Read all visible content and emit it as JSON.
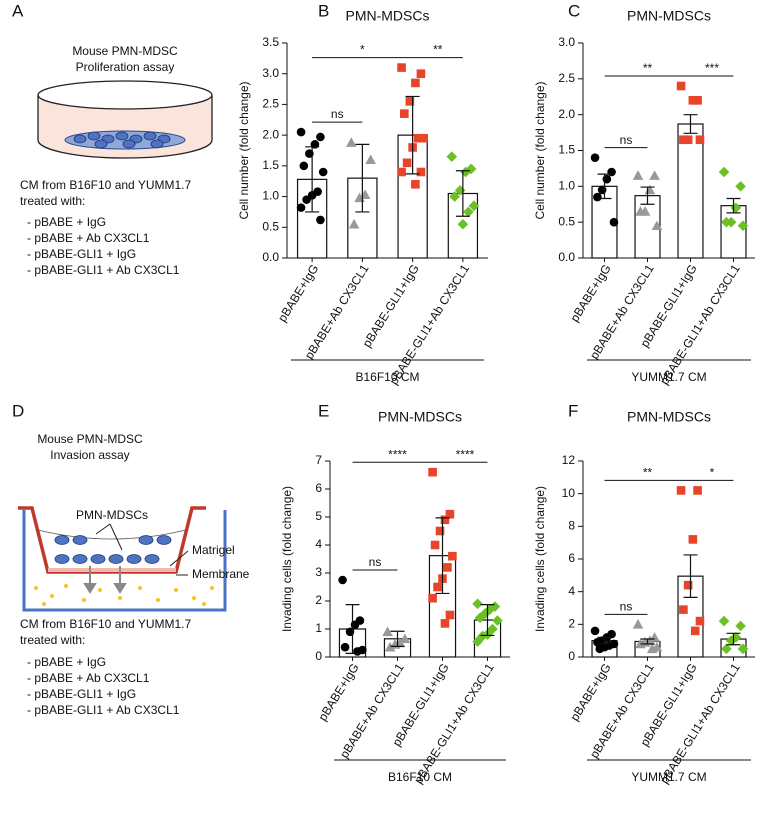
{
  "chart_data": [
    {
      "type": "bar",
      "panel_label": "B",
      "title": "PMN-MDSCs",
      "ylabel": "Cell number (fold change)",
      "xlabel": "B16F10 CM",
      "categories": [
        "pBABE+IgG",
        "pBABE+Ab CX3CL1",
        "pBABE-GLI1+IgG",
        "pBABE-GLI1+Ab CX3CL1"
      ],
      "values": [
        1.28,
        1.3,
        2.0,
        1.05
      ],
      "errors": [
        0.53,
        0.55,
        0.63,
        0.37
      ],
      "points": [
        [
          2.05,
          1.97,
          1.85,
          1.7,
          1.5,
          1.4,
          1.08,
          1.02,
          0.95,
          0.82,
          0.62
        ],
        [
          1.88,
          1.6,
          1.03,
          0.98,
          0.55
        ],
        [
          3.1,
          3.0,
          2.85,
          2.55,
          2.35,
          1.95,
          1.95,
          1.8,
          1.55,
          1.4,
          1.4,
          1.2
        ],
        [
          1.65,
          1.45,
          1.4,
          1.1,
          1.0,
          0.85,
          0.75,
          0.55
        ]
      ],
      "colors": [
        "#000000",
        "#999999",
        "#e8442a",
        "#6cc024"
      ],
      "markers": [
        "circle",
        "triangle",
        "square",
        "diamond"
      ],
      "ylim": [
        0,
        3.5
      ],
      "yticks": [
        {
          "value": 0,
          "label": "0.0"
        },
        0.5,
        {
          "value": 1,
          "label": "1.0"
        },
        1.5,
        {
          "value": 2,
          "label": "2.0"
        },
        2.5,
        {
          "value": 3,
          "label": "3.0"
        },
        3.5
      ],
      "significance": [
        {
          "groups": [
            "pBABE+IgG",
            "pBABE+Ab CX3CL1"
          ],
          "label": "ns"
        },
        {
          "groups": [
            "pBABE-GLI1+IgG",
            "pBABE-GLI1+Ab CX3CL1"
          ],
          "label": "**"
        },
        {
          "groups": [
            "pBABE+IgG",
            "pBABE-GLI1+IgG"
          ],
          "label": "*"
        }
      ]
    },
    {
      "type": "bar",
      "panel_label": "C",
      "title": "PMN-MDSCs",
      "ylabel": "Cell number (fold change)",
      "xlabel": "YUMM1.7 CM",
      "categories": [
        "pBABE+IgG",
        "pBABE+Ab CX3CL1",
        "pBABE-GLI1+IgG",
        "pBABE-GLI1+Ab CX3CL1"
      ],
      "values": [
        1.0,
        0.87,
        1.87,
        0.73
      ],
      "errors": [
        0.17,
        0.12,
        0.13,
        0.1
      ],
      "points": [
        [
          1.4,
          1.2,
          1.1,
          0.95,
          0.85,
          0.5
        ],
        [
          1.15,
          1.15,
          0.95,
          0.65,
          0.65,
          0.45
        ],
        [
          2.4,
          2.2,
          2.2,
          1.65,
          1.65,
          1.65
        ],
        [
          1.2,
          1.0,
          0.7,
          0.5,
          0.5,
          0.45
        ]
      ],
      "colors": [
        "#000000",
        "#999999",
        "#e8442a",
        "#6cc024"
      ],
      "markers": [
        "circle",
        "triangle",
        "square",
        "diamond"
      ],
      "ylim": [
        0,
        3
      ],
      "yticks": [
        {
          "value": 0,
          "label": "0.0"
        },
        0.5,
        {
          "value": 1,
          "label": "1.0"
        },
        1.5,
        {
          "value": 2,
          "label": "2.0"
        },
        2.5,
        {
          "value": 3,
          "label": "3.0"
        }
      ],
      "significance": [
        {
          "groups": [
            "pBABE+IgG",
            "pBABE+Ab CX3CL1"
          ],
          "label": "ns"
        },
        {
          "groups": [
            "pBABE-GLI1+IgG",
            "pBABE-GLI1+Ab CX3CL1"
          ],
          "label": "***"
        },
        {
          "groups": [
            "pBABE+IgG",
            "pBABE-GLI1+IgG"
          ],
          "label": "**"
        }
      ]
    },
    {
      "type": "bar",
      "panel_label": "E",
      "title": "PMN-MDSCs",
      "ylabel": "Invading cells (fold change)",
      "xlabel": "B16F10 CM",
      "categories": [
        "pBABE+IgG",
        "pBABE+Ab CX3CL1",
        "pBABE-GLI1+IgG",
        "pBABE-GLI1+Ab CX3CL1"
      ],
      "values": [
        1.0,
        0.65,
        3.62,
        1.32
      ],
      "errors": [
        0.87,
        0.27,
        1.35,
        0.55
      ],
      "points": [
        [
          2.75,
          1.3,
          1.15,
          0.9,
          0.35,
          0.25,
          0.2
        ],
        [
          0.9,
          0.65,
          0.5,
          0.45,
          0.35
        ],
        [
          6.6,
          5.1,
          4.9,
          4.5,
          4.0,
          3.6,
          3.2,
          2.8,
          2.5,
          2.1,
          1.5,
          1.2
        ],
        [
          1.9,
          1.8,
          1.7,
          1.55,
          1.4,
          1.3,
          1.0,
          0.8,
          0.75,
          0.55
        ]
      ],
      "colors": [
        "#000000",
        "#999999",
        "#e8442a",
        "#6cc024"
      ],
      "markers": [
        "circle",
        "triangle",
        "square",
        "diamond"
      ],
      "ylim": [
        0,
        7
      ],
      "yticks": [
        0,
        1,
        2,
        3,
        4,
        5,
        6,
        7
      ],
      "significance": [
        {
          "groups": [
            "pBABE+IgG",
            "pBABE+Ab CX3CL1"
          ],
          "label": "ns"
        },
        {
          "groups": [
            "pBABE-GLI1+IgG",
            "pBABE-GLI1+Ab CX3CL1"
          ],
          "label": "****"
        },
        {
          "groups": [
            "pBABE+IgG",
            "pBABE-GLI1+IgG"
          ],
          "label": "****"
        }
      ]
    },
    {
      "type": "bar",
      "panel_label": "F",
      "title": "PMN-MDSCs",
      "ylabel": "Invading cells (fold change)",
      "xlabel": "YUMM1.7 CM",
      "categories": [
        "pBABE+IgG",
        "pBABE+Ab CX3CL1",
        "pBABE-GLI1+IgG",
        "pBABE-GLI1+Ab CX3CL1"
      ],
      "values": [
        1.0,
        0.95,
        4.95,
        1.1
      ],
      "errors": [
        0.2,
        0.15,
        1.3,
        0.35
      ],
      "points": [
        [
          1.6,
          1.4,
          1.2,
          1.0,
          0.9,
          0.8,
          0.7,
          0.6,
          0.5
        ],
        [
          2.0,
          1.2,
          1.0,
          0.9,
          0.8,
          0.6,
          0.5
        ],
        [
          10.2,
          10.2,
          7.2,
          4.4,
          2.9,
          2.2,
          1.6
        ],
        [
          2.2,
          1.9,
          1.2,
          1.0,
          0.5,
          0.5
        ]
      ],
      "colors": [
        "#000000",
        "#999999",
        "#e8442a",
        "#6cc024"
      ],
      "markers": [
        "circle",
        "triangle",
        "square",
        "diamond"
      ],
      "ylim": [
        0,
        12
      ],
      "yticks": [
        0,
        2,
        4,
        6,
        8,
        10,
        12
      ],
      "significance": [
        {
          "groups": [
            "pBABE+IgG",
            "pBABE+Ab CX3CL1"
          ],
          "label": "ns"
        },
        {
          "groups": [
            "pBABE-GLI1+IgG",
            "pBABE-GLI1+Ab CX3CL1"
          ],
          "label": "*"
        },
        {
          "groups": [
            "pBABE+IgG",
            "pBABE-GLI1+IgG"
          ],
          "label": "**"
        }
      ]
    }
  ],
  "diagrams": [
    {
      "panel_label": "A",
      "title": [
        "Mouse PMN-MDSC",
        "Proliferation assay"
      ],
      "caption": [
        "CM from B16F10 and YUMM1.7",
        "treated with:"
      ],
      "treatments": [
        "- pBABE + IgG",
        "- pBABE + Ab CX3CL1",
        "- pBABE-GLI1 + IgG",
        "- pBABE-GLI1 + Ab CX3CL1"
      ]
    },
    {
      "panel_label": "D",
      "title": [
        "Mouse PMN-MDSC",
        "Invasion assay"
      ],
      "cells_label": "PMN-MDSCs",
      "matrigel_label": "Matrigel",
      "membrane_label": "Membrane",
      "caption": [
        "CM from B16F10 and YUMM1.7",
        "treated with:"
      ],
      "treatments": [
        "- pBABE + IgG",
        "- pBABE + Ab CX3CL1",
        "- pBABE-GLI1 + IgG",
        "- pBABE-GLI1 + Ab CX3CL1"
      ]
    }
  ]
}
